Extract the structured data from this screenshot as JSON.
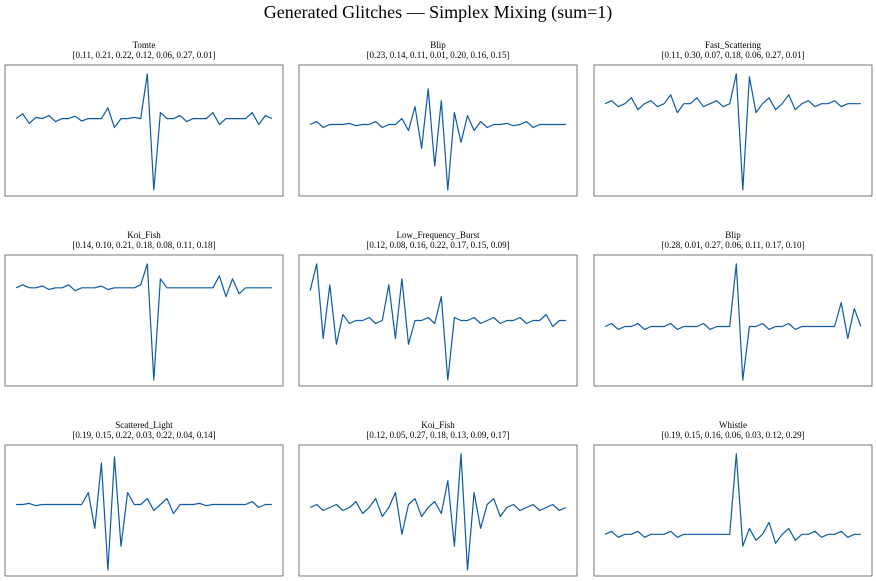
{
  "title": "Generated Glitches — Simplex Mixing (sum=1)",
  "chart_data": [
    {
      "type": "line",
      "title": "Tomte",
      "subtitle": "[0.11, 0.21, 0.22, 0.12, 0.06, 0.27, 0.01]",
      "color": "#0b5aa5",
      "ylim": [
        -1.1,
        1.1
      ],
      "values": [
        0.2,
        0.28,
        0.12,
        0.22,
        0.2,
        0.25,
        0.15,
        0.2,
        0.2,
        0.24,
        0.16,
        0.2,
        0.2,
        0.2,
        0.38,
        0.05,
        0.2,
        0.2,
        0.22,
        0.2,
        0.95,
        -1.0,
        0.3,
        0.2,
        0.2,
        0.25,
        0.15,
        0.2,
        0.2,
        0.2,
        0.3,
        0.1,
        0.2,
        0.2,
        0.2,
        0.2,
        0.3,
        0.1,
        0.25,
        0.2
      ]
    },
    {
      "type": "line",
      "title": "Blip",
      "subtitle": "[0.23, 0.14, 0.11, 0.01, 0.20, 0.16, 0.15]",
      "color": "#0b5aa5",
      "ylim": [
        -1.1,
        1.1
      ],
      "values": [
        0.1,
        0.15,
        0.05,
        0.1,
        0.1,
        0.1,
        0.12,
        0.08,
        0.1,
        0.1,
        0.15,
        0.05,
        0.1,
        0.1,
        0.2,
        0,
        0.4,
        -0.3,
        0.7,
        -0.6,
        0.5,
        -1.0,
        0.3,
        -0.2,
        0.25,
        0,
        0.15,
        0.05,
        0.1,
        0.1,
        0.12,
        0.08,
        0.1,
        0.15,
        0.05,
        0.1,
        0.1,
        0.1,
        0.1,
        0.1
      ]
    },
    {
      "type": "line",
      "title": "Fast_Scattering",
      "subtitle": "[0.11, 0.30, 0.07, 0.18, 0.06, 0.27, 0.01]",
      "color": "#0b5aa5",
      "ylim": [
        -1.1,
        1.1
      ],
      "values": [
        0.45,
        0.5,
        0.4,
        0.45,
        0.55,
        0.35,
        0.45,
        0.5,
        0.4,
        0.45,
        0.6,
        0.3,
        0.45,
        0.45,
        0.55,
        0.4,
        0.45,
        0.5,
        0.4,
        0.45,
        0.95,
        -1.0,
        0.9,
        0.3,
        0.45,
        0.55,
        0.35,
        0.45,
        0.6,
        0.35,
        0.45,
        0.5,
        0.4,
        0.45,
        0.45,
        0.5,
        0.4,
        0.45,
        0.45,
        0.45
      ]
    },
    {
      "type": "line",
      "title": "Koi_Fish",
      "subtitle": "[0.14, 0.10, 0.21, 0.18, 0.08, 0.11, 0.18]",
      "color": "#0b5aa5",
      "ylim": [
        -1.1,
        1.1
      ],
      "values": [
        0.55,
        0.6,
        0.55,
        0.55,
        0.58,
        0.52,
        0.55,
        0.55,
        0.6,
        0.5,
        0.55,
        0.55,
        0.55,
        0.58,
        0.52,
        0.55,
        0.55,
        0.55,
        0.55,
        0.6,
        0.95,
        -1.0,
        0.7,
        0.55,
        0.55,
        0.55,
        0.55,
        0.55,
        0.55,
        0.55,
        0.55,
        0.75,
        0.4,
        0.7,
        0.45,
        0.55,
        0.55,
        0.55,
        0.55,
        0.55
      ]
    },
    {
      "type": "line",
      "title": "Low_Frequency_Burst",
      "subtitle": "[0.12, 0.08, 0.16, 0.22, 0.17, 0.15, 0.09]",
      "color": "#0b5aa5",
      "ylim": [
        -1.1,
        1.1
      ],
      "values": [
        0.5,
        0.95,
        -0.3,
        0.6,
        -0.4,
        0.1,
        -0.05,
        0,
        0,
        0.05,
        -0.05,
        0,
        0.6,
        -0.3,
        0.7,
        -0.4,
        0,
        0,
        0.05,
        -0.05,
        0.4,
        -1.0,
        0.05,
        0,
        0,
        0.05,
        -0.05,
        0,
        0.05,
        -0.05,
        0,
        0,
        0.05,
        -0.05,
        0,
        0,
        0.1,
        -0.1,
        0,
        0
      ]
    },
    {
      "type": "line",
      "title": "Blip",
      "subtitle": "[0.28, 0.01, 0.27, 0.06, 0.11, 0.17, 0.10]",
      "color": "#0b5aa5",
      "ylim": [
        -1.1,
        1.1
      ],
      "values": [
        -0.1,
        -0.05,
        -0.15,
        -0.1,
        -0.1,
        -0.05,
        -0.15,
        -0.1,
        -0.1,
        -0.1,
        -0.05,
        -0.15,
        -0.1,
        -0.1,
        -0.1,
        -0.05,
        -0.15,
        -0.1,
        -0.1,
        -0.1,
        0.95,
        -1.0,
        -0.1,
        -0.1,
        -0.05,
        -0.15,
        -0.1,
        -0.1,
        -0.05,
        -0.15,
        -0.1,
        -0.1,
        -0.1,
        -0.1,
        -0.1,
        -0.1,
        0.3,
        -0.3,
        0.2,
        -0.1
      ]
    },
    {
      "type": "line",
      "title": "Scattered_Light",
      "subtitle": "[0.19, 0.15, 0.22, 0.03, 0.22, 0.04, 0.14]",
      "color": "#0b5aa5",
      "ylim": [
        -1.1,
        1.1
      ],
      "values": [
        0.1,
        0.1,
        0.12,
        0.08,
        0.1,
        0.1,
        0.1,
        0.1,
        0.1,
        0.1,
        0.1,
        0.3,
        -0.3,
        0.8,
        -1.0,
        0.9,
        -0.6,
        0.3,
        0.1,
        0.1,
        0.2,
        0,
        0.1,
        0.2,
        -0.05,
        0.1,
        0.1,
        0.1,
        0.12,
        0.08,
        0.1,
        0.1,
        0.1,
        0.1,
        0.1,
        0.1,
        0.15,
        0.05,
        0.1,
        0.1
      ]
    },
    {
      "type": "line",
      "title": "Koi_Fish",
      "subtitle": "[0.12, 0.05, 0.27, 0.18, 0.13, 0.09, 0.17]",
      "color": "#0b5aa5",
      "ylim": [
        -1.1,
        1.1
      ],
      "values": [
        0.05,
        0.1,
        0,
        0.05,
        0.1,
        0,
        0.05,
        0.15,
        -0.05,
        0.05,
        0.2,
        -0.1,
        0.05,
        0.3,
        -0.4,
        0.1,
        0.2,
        -0.1,
        0.05,
        0.15,
        -0.05,
        0.5,
        -0.6,
        0.95,
        -1.0,
        0.3,
        -0.3,
        0.1,
        0.2,
        -0.1,
        0.05,
        0.1,
        0,
        0.05,
        0.1,
        0,
        0.05,
        0.1,
        0,
        0.05
      ]
    },
    {
      "type": "line",
      "title": "Whistle",
      "subtitle": "[0.19, 0.15, 0.16, 0.06, 0.03, 0.12, 0.29]",
      "color": "#0b5aa5",
      "ylim": [
        -1.1,
        1.1
      ],
      "values": [
        -0.4,
        -0.35,
        -0.45,
        -0.4,
        -0.4,
        -0.35,
        -0.45,
        -0.4,
        -0.4,
        -0.4,
        -0.35,
        -0.45,
        -0.4,
        -0.4,
        -0.4,
        -0.4,
        -0.4,
        -0.4,
        -0.4,
        -0.4,
        0.95,
        -0.6,
        -0.3,
        -0.5,
        -0.4,
        -0.2,
        -0.55,
        -0.4,
        -0.3,
        -0.5,
        -0.4,
        -0.4,
        -0.35,
        -0.45,
        -0.4,
        -0.4,
        -0.35,
        -0.45,
        -0.4,
        -0.4
      ]
    }
  ]
}
